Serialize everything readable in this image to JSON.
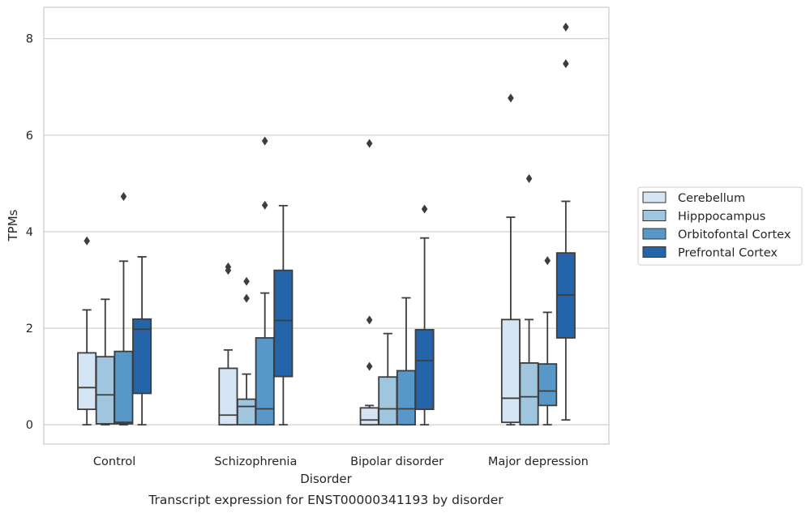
{
  "chart_data": {
    "type": "box",
    "title": "",
    "caption": "Transcript expression for ENST00000341193 by disorder",
    "xlabel": "Disorder",
    "ylabel": "TPMs",
    "ylim": [
      -0.4,
      8.65
    ],
    "yticks": [
      "0",
      "2",
      "4",
      "6",
      "8"
    ],
    "grid": true,
    "legend_position": "right",
    "categories": [
      "Control",
      "Schizophrenia",
      "Bipolar disorder",
      "Major depression"
    ],
    "series": [
      {
        "name": "Cerebellum",
        "color": "#d6e5f4",
        "boxes": [
          {
            "whislo": 0.0,
            "q1": 0.32,
            "med": 0.77,
            "q3": 1.49,
            "whishi": 2.38,
            "fliers": [
              3.81
            ]
          },
          {
            "whislo": 0.0,
            "q1": 0.0,
            "med": 0.2,
            "q3": 1.17,
            "whishi": 1.55,
            "fliers": [
              3.2,
              3.27
            ]
          },
          {
            "whislo": 0.0,
            "q1": 0.0,
            "med": 0.1,
            "q3": 0.35,
            "whishi": 0.4,
            "fliers": [
              1.21,
              2.17,
              5.83
            ]
          },
          {
            "whislo": 0.0,
            "q1": 0.05,
            "med": 0.55,
            "q3": 2.18,
            "whishi": 4.3,
            "fliers": [
              6.77
            ]
          }
        ]
      },
      {
        "name": "Hipppocampus",
        "color": "#9fc5df",
        "boxes": [
          {
            "whislo": 0.0,
            "q1": 0.02,
            "med": 0.62,
            "q3": 1.41,
            "whishi": 2.6,
            "fliers": []
          },
          {
            "whislo": 0.0,
            "q1": 0.0,
            "med": 0.38,
            "q3": 0.53,
            "whishi": 1.05,
            "fliers": [
              2.62,
              2.97
            ]
          },
          {
            "whislo": 0.0,
            "q1": 0.0,
            "med": 0.33,
            "q3": 0.99,
            "whishi": 1.89,
            "fliers": []
          },
          {
            "whislo": 0.0,
            "q1": 0.0,
            "med": 0.58,
            "q3": 1.28,
            "whishi": 2.18,
            "fliers": [
              5.1
            ]
          }
        ]
      },
      {
        "name": "Orbitofontal Cortex",
        "color": "#5898c9",
        "boxes": [
          {
            "whislo": 0.0,
            "q1": 0.02,
            "med": 0.05,
            "q3": 1.52,
            "whishi": 3.39,
            "fliers": [
              4.73
            ]
          },
          {
            "whislo": 0.0,
            "q1": 0.0,
            "med": 0.33,
            "q3": 1.8,
            "whishi": 2.73,
            "fliers": [
              4.55,
              5.88
            ]
          },
          {
            "whislo": 0.0,
            "q1": 0.0,
            "med": 0.33,
            "q3": 1.12,
            "whishi": 2.63,
            "fliers": []
          },
          {
            "whislo": 0.0,
            "q1": 0.4,
            "med": 0.7,
            "q3": 1.26,
            "whishi": 2.33,
            "fliers": [
              3.4
            ]
          }
        ]
      },
      {
        "name": "Prefrontal Cortex",
        "color": "#2464a8",
        "boxes": [
          {
            "whislo": 0.0,
            "q1": 0.65,
            "med": 1.98,
            "q3": 2.19,
            "whishi": 3.48,
            "fliers": []
          },
          {
            "whislo": 0.0,
            "q1": 1.0,
            "med": 2.16,
            "q3": 3.2,
            "whishi": 4.54,
            "fliers": []
          },
          {
            "whislo": 0.0,
            "q1": 0.32,
            "med": 1.33,
            "q3": 1.97,
            "whishi": 3.87,
            "fliers": [
              4.47
            ]
          },
          {
            "whislo": 0.1,
            "q1": 1.8,
            "med": 2.69,
            "q3": 3.56,
            "whishi": 4.63,
            "fliers": [
              7.48,
              8.24
            ]
          }
        ]
      }
    ]
  }
}
